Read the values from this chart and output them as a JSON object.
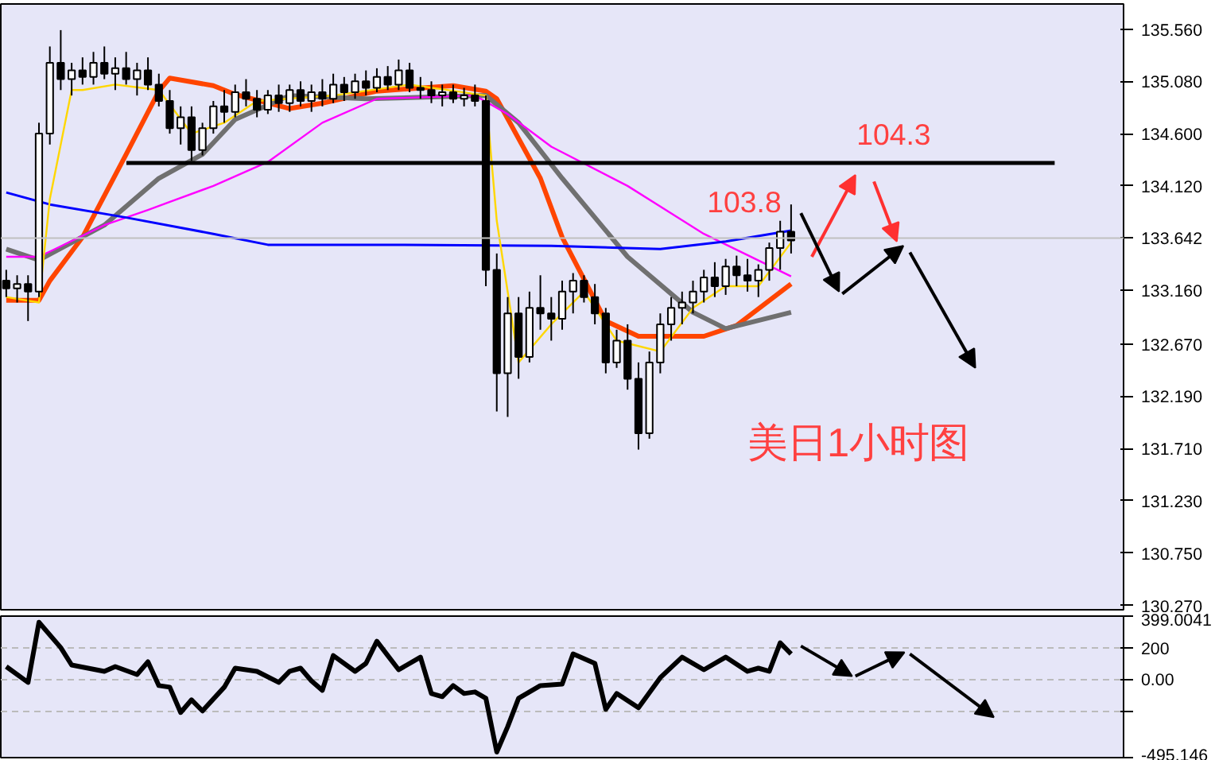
{
  "chart_data": [
    {
      "type": "candlestick",
      "categories": [
        null,
        null,
        null,
        null,
        null,
        null,
        null,
        null,
        null,
        null,
        null,
        null,
        null,
        null,
        null,
        null,
        null,
        null,
        null,
        null,
        null,
        null,
        null,
        null,
        null,
        null,
        null,
        null,
        null,
        null,
        null,
        null,
        null,
        null,
        null,
        null,
        null,
        null,
        null,
        null,
        null,
        null,
        null,
        null,
        null,
        null,
        null,
        null,
        null,
        null,
        null,
        null,
        null,
        null,
        null,
        null,
        null,
        null,
        null,
        null,
        null,
        null,
        null,
        null,
        null,
        null,
        null,
        null,
        null,
        null,
        null,
        null,
        null,
        null,
        null,
        null,
        null,
        null,
        null,
        null,
        null,
        null,
        null,
        null,
        null,
        null,
        null,
        null,
        null,
        null,
        null,
        null,
        null,
        null,
        null,
        null,
        null,
        null,
        null,
        null,
        null,
        null,
        null
      ],
      "ohlc": [
        [
          133.25,
          133.35,
          133.1,
          133.18
        ],
        [
          133.18,
          133.3,
          133.05,
          133.22
        ],
        [
          133.22,
          133.3,
          132.88,
          133.15
        ],
        [
          133.15,
          134.7,
          133.1,
          134.6
        ],
        [
          134.6,
          135.4,
          134.5,
          135.25
        ],
        [
          135.25,
          135.55,
          135.0,
          135.1
        ],
        [
          135.1,
          135.25,
          134.95,
          135.18
        ],
        [
          135.18,
          135.3,
          135.05,
          135.12
        ],
        [
          135.12,
          135.35,
          135.05,
          135.25
        ],
        [
          135.25,
          135.4,
          135.1,
          135.15
        ],
        [
          135.15,
          135.3,
          135.0,
          135.2
        ],
        [
          135.2,
          135.35,
          135.05,
          135.1
        ],
        [
          135.1,
          135.25,
          134.95,
          135.18
        ],
        [
          135.18,
          135.3,
          135.0,
          135.05
        ],
        [
          135.05,
          135.15,
          134.85,
          134.9
        ],
        [
          134.9,
          135.0,
          134.6,
          134.65
        ],
        [
          134.65,
          134.85,
          134.5,
          134.75
        ],
        [
          134.75,
          134.85,
          134.35,
          134.45
        ],
        [
          134.45,
          134.7,
          134.4,
          134.65
        ],
        [
          134.65,
          134.9,
          134.6,
          134.85
        ],
        [
          134.85,
          135.0,
          134.7,
          134.8
        ],
        [
          134.8,
          135.05,
          134.75,
          134.98
        ],
        [
          134.98,
          135.1,
          134.85,
          134.92
        ],
        [
          134.92,
          135.0,
          134.75,
          134.82
        ],
        [
          134.82,
          135.0,
          134.78,
          134.95
        ],
        [
          134.95,
          135.05,
          134.8,
          134.88
        ],
        [
          134.88,
          135.05,
          134.8,
          135.0
        ],
        [
          135.0,
          135.08,
          134.85,
          134.9
        ],
        [
          134.9,
          135.05,
          134.8,
          134.98
        ],
        [
          134.98,
          135.1,
          134.85,
          134.92
        ],
        [
          134.92,
          135.15,
          134.88,
          135.05
        ],
        [
          135.05,
          135.12,
          134.9,
          134.98
        ],
        [
          134.98,
          135.15,
          134.92,
          135.08
        ],
        [
          135.08,
          135.18,
          134.95,
          135.02
        ],
        [
          135.02,
          135.2,
          134.98,
          135.12
        ],
        [
          135.12,
          135.22,
          135.0,
          135.05
        ],
        [
          135.05,
          135.28,
          135.0,
          135.18
        ],
        [
          135.18,
          135.25,
          134.98,
          135.02
        ],
        [
          135.02,
          135.12,
          134.92,
          135.0
        ],
        [
          135.0,
          135.08,
          134.88,
          134.95
        ],
        [
          134.95,
          135.05,
          134.85,
          134.98
        ],
        [
          134.98,
          135.05,
          134.88,
          134.92
        ],
        [
          134.92,
          135.02,
          134.85,
          134.95
        ],
        [
          134.95,
          135.05,
          134.85,
          134.9
        ],
        [
          134.9,
          134.95,
          133.2,
          133.35
        ],
        [
          133.35,
          133.5,
          132.05,
          132.4
        ],
        [
          132.4,
          133.1,
          132.0,
          132.95
        ],
        [
          132.95,
          133.1,
          132.35,
          132.55
        ],
        [
          132.55,
          133.15,
          132.5,
          133.0
        ],
        [
          133.0,
          133.3,
          132.8,
          132.95
        ],
        [
          132.95,
          133.1,
          132.7,
          132.9
        ],
        [
          132.9,
          133.25,
          132.8,
          133.15
        ],
        [
          133.15,
          133.32,
          132.95,
          133.25
        ],
        [
          133.25,
          133.3,
          133.05,
          133.1
        ],
        [
          133.1,
          133.22,
          132.85,
          132.95
        ],
        [
          132.95,
          133.0,
          132.4,
          132.5
        ],
        [
          132.5,
          132.8,
          132.45,
          132.7
        ],
        [
          132.7,
          132.85,
          132.25,
          132.35
        ],
        [
          132.35,
          132.5,
          131.7,
          131.85
        ],
        [
          131.85,
          132.6,
          131.8,
          132.5
        ],
        [
          132.5,
          132.95,
          132.4,
          132.85
        ],
        [
          132.85,
          133.1,
          132.7,
          133.0
        ],
        [
          133.0,
          133.15,
          132.85,
          133.05
        ],
        [
          133.05,
          133.25,
          132.95,
          133.15
        ],
        [
          133.15,
          133.35,
          133.05,
          133.28
        ],
        [
          133.28,
          133.42,
          133.1,
          133.2
        ],
        [
          133.2,
          133.45,
          133.12,
          133.38
        ],
        [
          133.38,
          133.48,
          133.2,
          133.3
        ],
        [
          133.3,
          133.45,
          133.15,
          133.25
        ],
        [
          133.25,
          133.4,
          133.1,
          133.35
        ],
        [
          133.35,
          133.6,
          133.25,
          133.55
        ],
        [
          133.55,
          133.8,
          133.35,
          133.7
        ],
        [
          133.7,
          133.95,
          133.5,
          133.62
        ],
        null,
        null,
        null,
        null,
        null,
        null,
        null,
        null,
        null,
        null,
        null,
        null,
        null,
        null,
        null,
        null,
        null,
        null,
        null,
        null,
        null,
        null,
        null,
        null,
        null,
        null,
        null,
        null,
        null,
        null
      ],
      "color": "#000000",
      "series": [
        {
          "type": "line",
          "color": "#ff4500",
          "values": [
            133.07,
            null,
            null,
            133.07,
            133.25,
            null,
            null,
            133.65,
            null,
            null,
            null,
            134.41,
            null,
            null,
            134.99,
            135.11,
            null,
            null,
            null,
            135.04,
            null,
            134.96,
            null,
            null,
            null,
            null,
            134.83,
            null,
            null,
            134.88,
            null,
            null,
            null,
            null,
            134.99,
            null,
            null,
            null,
            null,
            null,
            null,
            135.04,
            null,
            null,
            134.99,
            134.92,
            null,
            null,
            null,
            134.19,
            null,
            133.65,
            null,
            null,
            null,
            132.88,
            null,
            null,
            132.74,
            null,
            null,
            null,
            null,
            null,
            132.74,
            null,
            null,
            132.84,
            null,
            null,
            null,
            null,
            133.22,
            null,
            null,
            null,
            null,
            null,
            null,
            null,
            null,
            null,
            null,
            null,
            null,
            null,
            null,
            null,
            null,
            null,
            null,
            null,
            null,
            null,
            null,
            null,
            null,
            null,
            null,
            null,
            null,
            null,
            null
          ]
        },
        {
          "type": "line",
          "color": "#707070",
          "values": [
            133.54,
            null,
            null,
            133.44,
            null,
            null,
            null,
            null,
            null,
            133.76,
            null,
            null,
            null,
            null,
            134.19,
            null,
            null,
            null,
            134.41,
            null,
            null,
            134.73,
            null,
            null,
            null,
            null,
            134.95,
            null,
            null,
            null,
            null,
            null,
            null,
            134.92,
            null,
            null,
            null,
            null,
            null,
            null,
            null,
            null,
            null,
            null,
            134.95,
            null,
            null,
            134.7,
            null,
            null,
            null,
            134.19,
            null,
            null,
            null,
            null,
            null,
            133.47,
            null,
            null,
            null,
            null,
            null,
            132.96,
            null,
            null,
            132.81,
            null,
            null,
            null,
            null,
            null,
            132.96,
            null,
            null,
            null,
            null,
            null,
            null,
            null,
            null,
            null,
            null,
            null,
            null,
            null,
            null,
            null,
            null,
            null,
            null,
            null,
            null,
            null,
            null,
            null,
            null,
            null,
            null,
            null,
            null,
            null,
            null
          ]
        },
        {
          "type": "line",
          "color": "#ff00ff",
          "values": [
            133.47,
            null,
            null,
            133.47,
            null,
            null,
            null,
            null,
            null,
            133.76,
            null,
            null,
            null,
            133.9,
            null,
            null,
            null,
            null,
            null,
            134.12,
            null,
            null,
            null,
            null,
            134.34,
            null,
            null,
            null,
            null,
            134.7,
            null,
            null,
            null,
            null,
            134.92,
            null,
            null,
            null,
            null,
            null,
            null,
            null,
            null,
            134.95,
            null,
            null,
            134.78,
            null,
            null,
            null,
            134.48,
            null,
            null,
            null,
            null,
            null,
            null,
            134.12,
            null,
            null,
            null,
            null,
            null,
            null,
            133.68,
            null,
            null,
            null,
            null,
            null,
            null,
            null,
            133.29,
            null,
            null,
            null,
            null,
            null,
            null,
            null,
            null,
            null,
            null,
            null,
            null,
            null,
            null,
            null,
            null,
            null,
            null,
            null,
            null,
            null,
            null,
            null,
            null,
            null,
            null,
            null,
            null,
            null,
            null
          ]
        },
        {
          "type": "line",
          "color": "#0000ff",
          "values": [
            134.06,
            null,
            null,
            null,
            133.95,
            null,
            null,
            null,
            null,
            null,
            null,
            133.83,
            null,
            null,
            null,
            null,
            null,
            null,
            null,
            133.68,
            null,
            null,
            null,
            null,
            133.58,
            null,
            null,
            null,
            null,
            null,
            null,
            null,
            null,
            null,
            null,
            null,
            133.58,
            null,
            null,
            null,
            null,
            null,
            null,
            null,
            null,
            null,
            null,
            null,
            null,
            null,
            133.57,
            null,
            null,
            null,
            null,
            null,
            null,
            null,
            null,
            null,
            133.54,
            null,
            null,
            null,
            null,
            null,
            133.61,
            null,
            null,
            null,
            null,
            null,
            133.71,
            null,
            null,
            null,
            null,
            null,
            null,
            null,
            null,
            null,
            null,
            null,
            null,
            null,
            null,
            null,
            null,
            null,
            null,
            null,
            null,
            null,
            null,
            null,
            null,
            null,
            null,
            null,
            null,
            null,
            null
          ]
        },
        {
          "type": "line",
          "color": "#ffd700",
          "values": [
            133.1,
            null,
            null,
            133.05,
            134.0,
            null,
            135.0,
            135.0,
            null,
            null,
            135.05,
            null,
            null,
            null,
            135.0,
            null,
            null,
            134.6,
            null,
            null,
            134.7,
            null,
            null,
            134.9,
            null,
            null,
            null,
            null,
            null,
            null,
            134.95,
            null,
            null,
            null,
            null,
            null,
            null,
            135.05,
            null,
            null,
            null,
            null,
            null,
            null,
            134.95,
            133.8,
            null,
            132.5,
            null,
            null,
            132.85,
            null,
            null,
            133.15,
            null,
            null,
            132.7,
            null,
            null,
            null,
            132.6,
            null,
            null,
            133.0,
            null,
            null,
            133.2,
            null,
            null,
            133.2,
            null,
            null,
            133.6,
            null,
            null,
            null,
            null,
            null,
            null,
            null,
            null,
            null,
            null,
            null,
            null,
            null,
            null,
            null,
            null,
            null,
            null,
            null,
            null,
            null,
            null,
            null,
            null,
            null,
            null,
            null,
            null,
            null,
            null
          ]
        }
      ],
      "ylim": [
        130.23,
        135.79
      ],
      "yticks": [
        {
          "value": 135.56,
          "label": "135.560"
        },
        {
          "value": 135.08,
          "label": "135.080"
        },
        {
          "value": 134.6,
          "label": "134.600"
        },
        {
          "value": 134.12,
          "label": "134.120"
        },
        {
          "value": 133.16,
          "label": "133.160"
        },
        {
          "value": 132.67,
          "label": "132.670"
        },
        {
          "value": 132.19,
          "label": "132.190"
        },
        {
          "value": 131.71,
          "label": "131.710"
        },
        {
          "value": 131.23,
          "label": "131.230"
        },
        {
          "value": 130.75,
          "label": "130.750"
        },
        {
          "value": 130.27,
          "label": "130.270"
        }
      ],
      "ref_lines": [
        {
          "axis": "y",
          "value": 134.33,
          "color": "#000000"
        },
        {
          "axis": "y",
          "value": 133.642,
          "label": "133.642",
          "color": "#c0c0c0"
        }
      ],
      "annotations": [
        "103.8",
        "104.3",
        "美日1小时图"
      ],
      "grid": false,
      "tick_labels": "y"
    },
    {
      "type": "line",
      "categories": [
        null,
        null,
        null,
        null,
        null,
        null,
        null,
        null,
        null,
        null,
        null,
        null,
        null,
        null,
        null,
        null,
        null,
        null,
        null,
        null,
        null,
        null,
        null,
        null,
        null,
        null,
        null,
        null,
        null,
        null,
        null,
        null,
        null,
        null,
        null,
        null,
        null,
        null,
        null,
        null,
        null,
        null,
        null,
        null,
        null,
        null,
        null,
        null,
        null,
        null,
        null,
        null,
        null,
        null,
        null,
        null,
        null,
        null,
        null,
        null,
        null,
        null,
        null,
        null,
        null,
        null,
        null,
        null,
        null,
        null,
        null,
        null,
        null,
        null,
        null,
        null,
        null,
        null,
        null,
        null,
        null,
        null,
        null,
        null,
        null,
        null,
        null,
        null,
        null,
        null,
        null,
        null,
        null,
        null,
        null,
        null,
        null,
        null,
        null,
        null,
        null,
        null,
        null
      ],
      "series": [
        {
          "color": "#000000",
          "values": [
            80,
            null,
            -20,
            360,
            null,
            200,
            90,
            null,
            null,
            50,
            80,
            null,
            30,
            110,
            -40,
            -50,
            -210,
            -130,
            -200,
            null,
            -50,
            70,
            null,
            50,
            null,
            -20,
            50,
            70,
            -10,
            -70,
            150,
            null,
            50,
            100,
            240,
            150,
            60,
            null,
            140,
            -90,
            -110,
            -40,
            -90,
            -80,
            -120,
            -460,
            -300,
            -120,
            null,
            -40,
            null,
            -30,
            160,
            null,
            100,
            -190,
            -90,
            null,
            -180,
            null,
            10,
            null,
            140,
            null,
            60,
            null,
            140,
            null,
            50,
            70,
            50,
            230,
            160,
            null,
            null,
            null,
            null,
            null,
            null,
            null,
            null,
            null,
            null,
            null,
            null,
            null,
            null,
            null,
            null,
            null,
            null,
            null,
            null,
            null,
            null,
            null,
            null,
            null,
            null,
            null,
            null,
            null,
            null
          ]
        }
      ],
      "ylim": [
        -495.146,
        399.0041
      ],
      "yticks": [
        {
          "value": 399.0041,
          "label": "399.0041"
        },
        200,
        {
          "value": 0,
          "label": "0.00"
        },
        {
          "value": -200,
          "label": null
        },
        {
          "value": -495.146,
          "label": "-495.146"
        }
      ],
      "grid": "y",
      "tick_labels": "y"
    }
  ]
}
